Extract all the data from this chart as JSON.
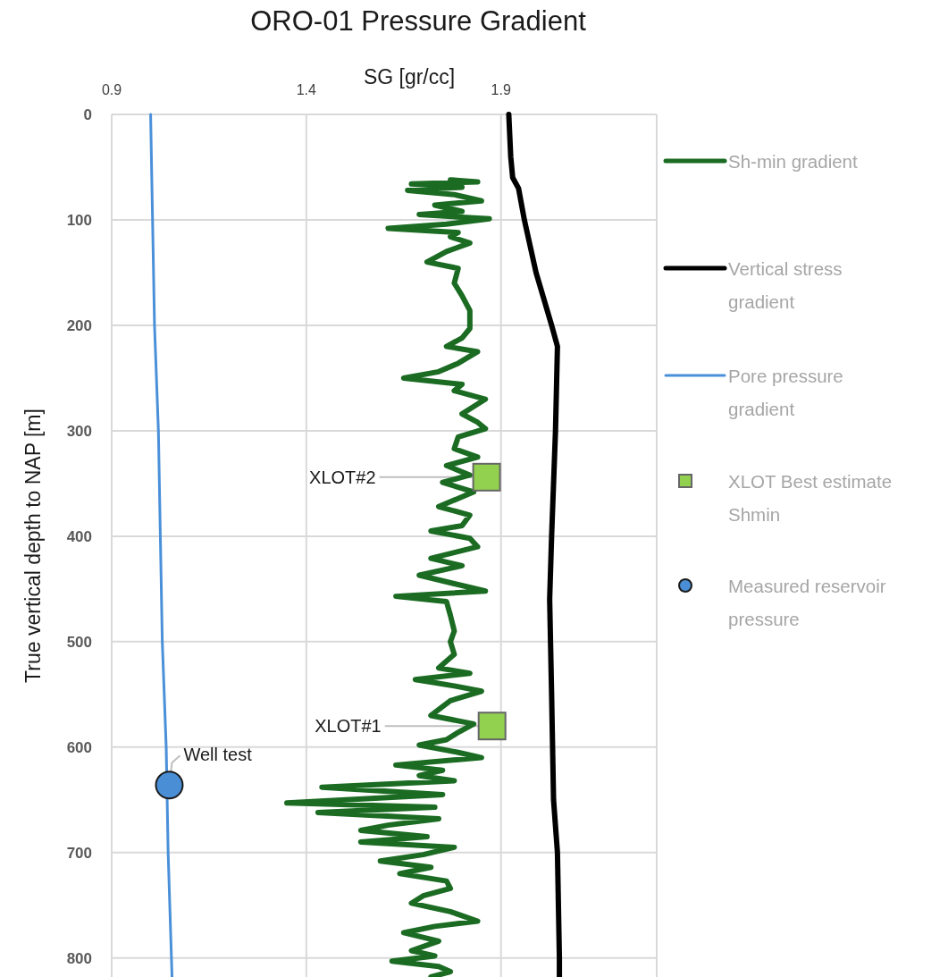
{
  "chart_data": {
    "type": "line",
    "title": "ORO-01 Pressure Gradient",
    "xlabel": "SG [gr/cc]",
    "ylabel": "True vertical depth to NAP [m]",
    "xlim": [
      0.9,
      2.3
    ],
    "xticks": [
      0.9,
      1.4,
      1.9
    ],
    "ylim": [
      818,
      0
    ],
    "yticks": [
      0,
      100,
      200,
      300,
      400,
      500,
      600,
      700,
      800
    ],
    "grid": true,
    "legend": "right",
    "series": [
      {
        "name": "Sh-min gradient",
        "color": "#1b6b23",
        "x": [
          1.77,
          1.84,
          1.67,
          1.8,
          1.66,
          1.78,
          1.85,
          1.73,
          1.8,
          1.69,
          1.87,
          1.76,
          1.61,
          1.79,
          1.77,
          1.82,
          1.76,
          1.71,
          1.79,
          1.78,
          1.8,
          1.82,
          1.82,
          1.8,
          1.76,
          1.84,
          1.79,
          1.74,
          1.65,
          1.8,
          1.78,
          1.86,
          1.8,
          1.84,
          1.86,
          1.79,
          1.78,
          1.84,
          1.76,
          1.82,
          1.75,
          1.83,
          1.74,
          1.82,
          1.8,
          1.72,
          1.82,
          1.84,
          1.72,
          1.8,
          1.69,
          1.78,
          1.86,
          1.63,
          1.76,
          1.77,
          1.78,
          1.77,
          1.78,
          1.74,
          1.82,
          1.68,
          1.78,
          1.85,
          1.77,
          1.72,
          1.83,
          1.79,
          1.76,
          1.69,
          1.79,
          1.85,
          1.63,
          1.75,
          1.69,
          1.78,
          1.44,
          1.75,
          1.35,
          1.73,
          1.43,
          1.74,
          1.61,
          1.54,
          1.71,
          1.54,
          1.78,
          1.7,
          1.59,
          1.72,
          1.64,
          1.76,
          1.77,
          1.7,
          1.67,
          1.77,
          1.84,
          1.73,
          1.65,
          1.74,
          1.67,
          1.73,
          1.62,
          1.74,
          1.77,
          1.72
        ],
        "values": [
          62,
          64,
          66,
          69,
          72,
          76,
          82,
          86,
          92,
          95,
          99,
          104,
          108,
          112,
          116,
          122,
          130,
          140,
          146,
          160,
          172,
          186,
          203,
          212,
          220,
          225,
          236,
          244,
          250,
          256,
          262,
          270,
          284,
          292,
          298,
          306,
          317,
          325,
          333,
          342,
          349,
          358,
          372,
          380,
          390,
          395,
          402,
          410,
          421,
          428,
          437,
          445,
          452,
          457,
          462,
          475,
          490,
          500,
          512,
          525,
          530,
          536,
          542,
          547,
          556,
          570,
          578,
          586,
          593,
          598,
          605,
          610,
          617,
          622,
          627,
          632,
          638,
          645,
          653,
          657,
          662,
          668,
          674,
          679,
          685,
          690,
          695,
          702,
          708,
          714,
          720,
          727,
          734,
          741,
          748,
          756,
          765,
          770,
          776,
          784,
          793,
          798,
          803,
          808,
          813,
          818
        ]
      },
      {
        "name": "Vertical stress gradient",
        "color": "#000000",
        "x": [
          1.92,
          1.925,
          1.93,
          1.945,
          1.96,
          1.99,
          2.03,
          2.045,
          2.04,
          2.03,
          2.025,
          2.03,
          2.035,
          2.045,
          2.05,
          2.05
        ],
        "values": [
          0,
          40,
          60,
          70,
          100,
          150,
          200,
          220,
          300,
          400,
          460,
          550,
          650,
          700,
          800,
          818
        ]
      },
      {
        "name": "Pore pressure gradient",
        "color": "#4a90d9",
        "x": [
          1.0,
          1.005,
          1.01,
          1.02,
          1.025,
          1.03,
          1.04,
          1.045,
          1.055
        ],
        "values": [
          0,
          100,
          200,
          300,
          400,
          500,
          600,
          700,
          818
        ]
      },
      {
        "name": "XLOT Best estimate Shmin",
        "type": "scatter",
        "marker": "square",
        "color": "#92d050",
        "x": [
          1.877,
          1.863
        ],
        "values": [
          580,
          344
        ]
      },
      {
        "name": "Measured reservoir pressure",
        "type": "scatter",
        "marker": "circle",
        "color": "#4a8fd6",
        "x": [
          1.048
        ],
        "values": [
          636
        ]
      }
    ],
    "annotations": [
      {
        "text": "XLOT#2",
        "x": 1.863,
        "y": 344
      },
      {
        "text": "XLOT#1",
        "x": 1.877,
        "y": 580
      },
      {
        "text": "Well test",
        "x": 1.048,
        "y": 636
      }
    ]
  }
}
